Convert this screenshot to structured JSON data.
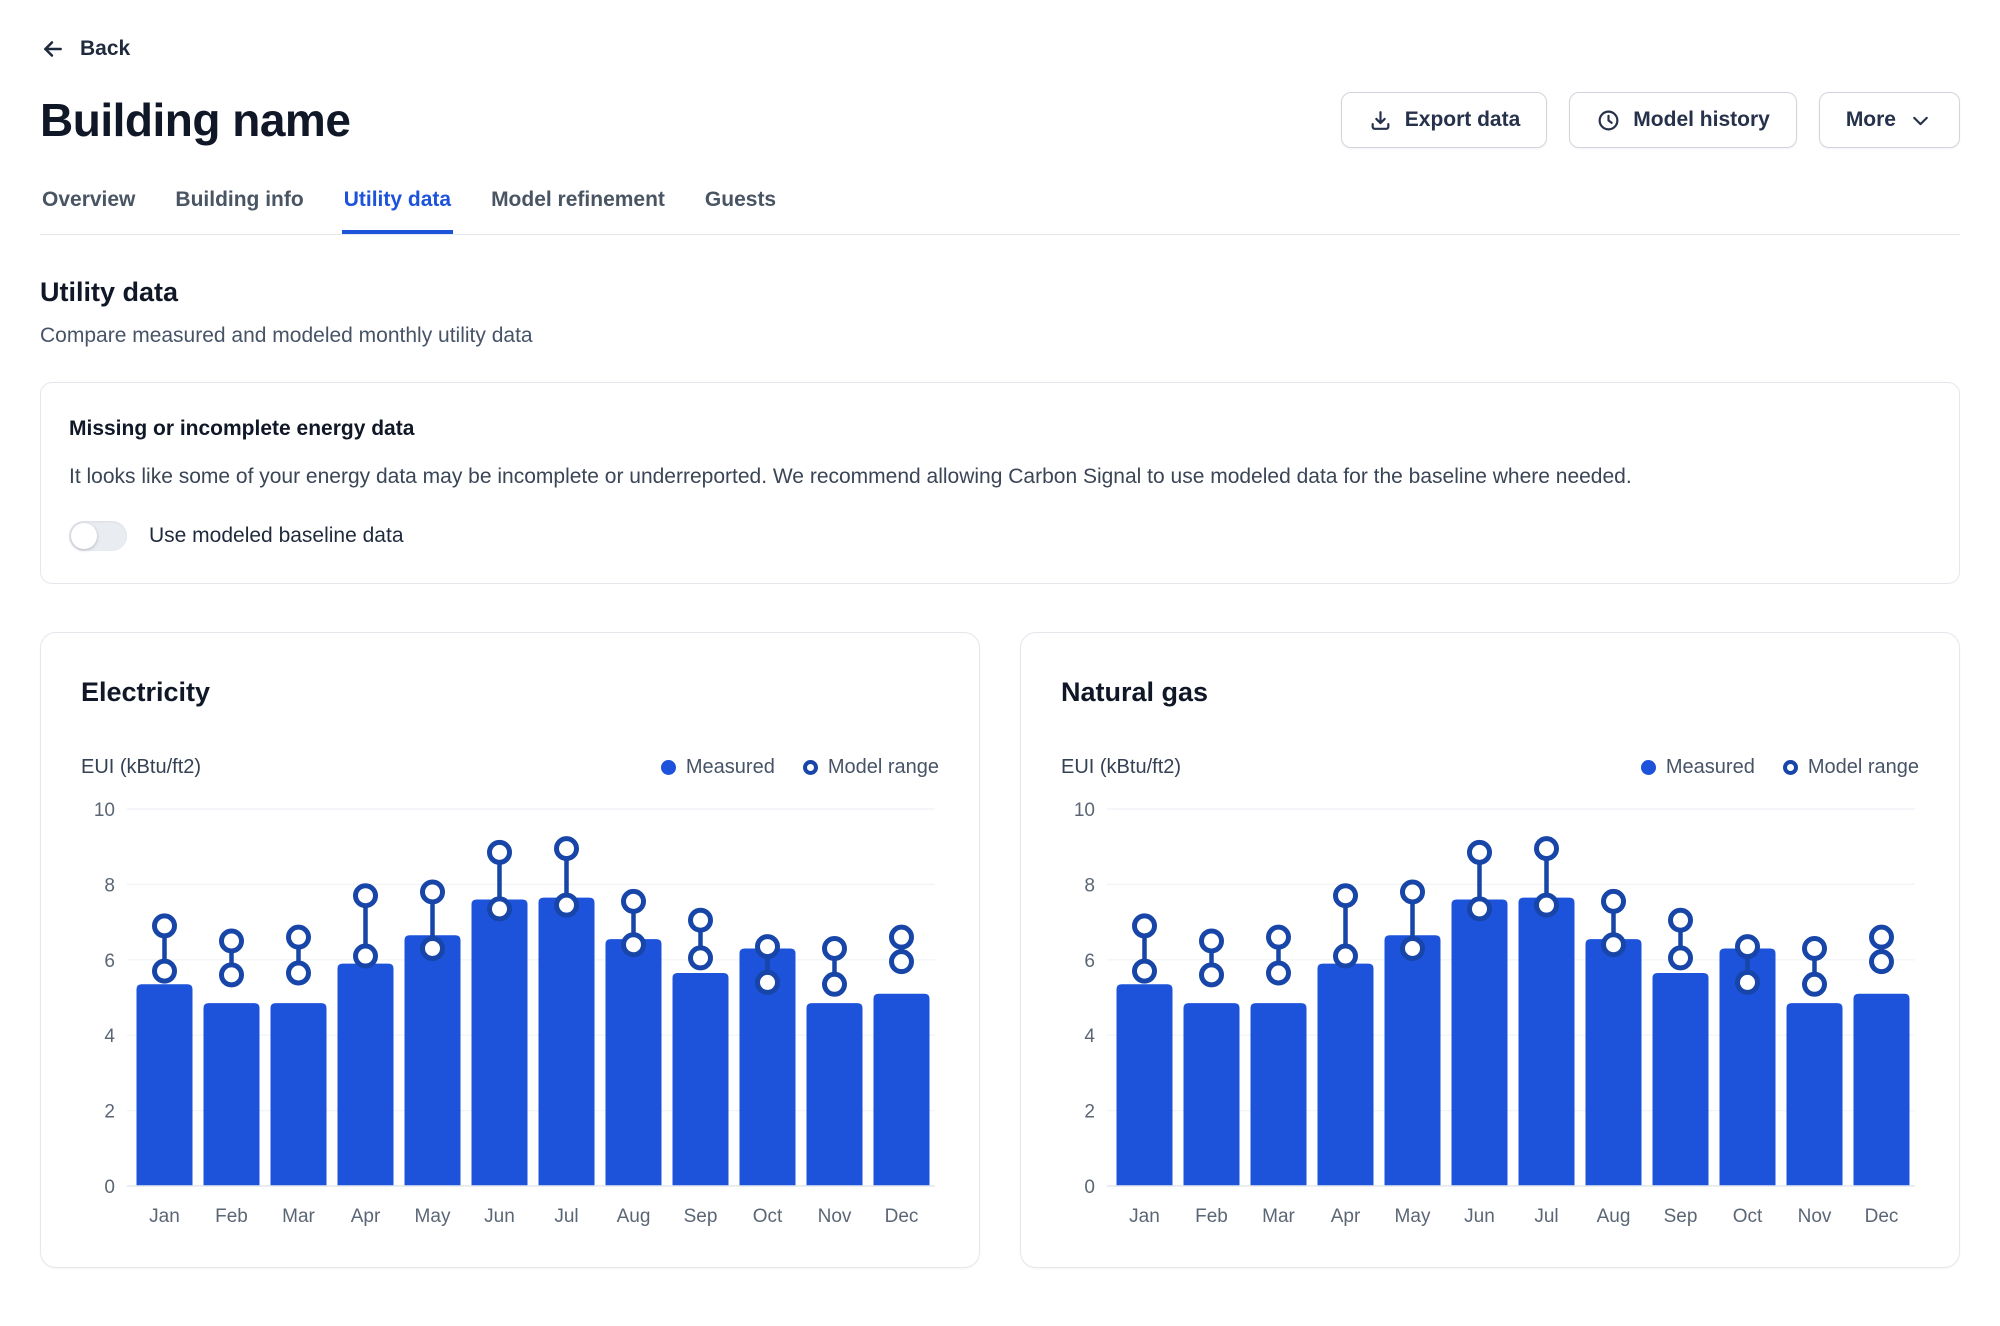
{
  "page": {
    "back_label": "Back",
    "title": "Building name"
  },
  "actions": {
    "export_label": "Export data",
    "model_history_label": "Model history",
    "more_label": "More"
  },
  "tabs": [
    {
      "label": "Overview",
      "active": false
    },
    {
      "label": "Building info",
      "active": false
    },
    {
      "label": "Utility data",
      "active": true
    },
    {
      "label": "Model refinement",
      "active": false
    },
    {
      "label": "Guests",
      "active": false
    }
  ],
  "section": {
    "heading": "Utility data",
    "subheading": "Compare measured and modeled monthly utility data"
  },
  "alert": {
    "title": "Missing or incomplete energy data",
    "body": "It looks like some of your energy data may be incomplete or underreported. We recommend allowing Carbon Signal to use modeled data for the baseline where needed.",
    "toggle_label": "Use modeled baseline data",
    "toggle_on": false
  },
  "colors": {
    "accent": "#1d52db",
    "model_range": "#1745a8",
    "grid": "#f2f4f7",
    "axis_line": "#e4e7ec",
    "tick_text": "#5b6675"
  },
  "chart_data": [
    {
      "type": "bar",
      "title": "Electricity",
      "ylabel": "EUI (kBtu/ft2)",
      "ylim": [
        0,
        10
      ],
      "yticks": [
        0,
        2,
        4,
        6,
        8,
        10
      ],
      "grid": true,
      "legend_position": "top-right",
      "legend": [
        {
          "label": "Measured",
          "style": "filled-dot"
        },
        {
          "label": "Model range",
          "style": "open-dot"
        }
      ],
      "categories": [
        "Jan",
        "Feb",
        "Mar",
        "Apr",
        "May",
        "Jun",
        "Jul",
        "Aug",
        "Sep",
        "Oct",
        "Nov",
        "Dec"
      ],
      "series": [
        {
          "name": "Measured",
          "type": "bar",
          "values": [
            5.35,
            4.85,
            4.85,
            5.9,
            6.65,
            7.6,
            7.65,
            6.55,
            5.65,
            6.3,
            4.85,
            5.1
          ]
        },
        {
          "name": "Model range",
          "type": "range",
          "low": [
            5.7,
            5.6,
            5.65,
            6.1,
            6.3,
            7.35,
            7.45,
            6.4,
            6.05,
            5.4,
            5.35,
            5.95
          ],
          "high": [
            6.9,
            6.5,
            6.6,
            7.7,
            7.8,
            8.85,
            8.95,
            7.55,
            7.05,
            6.35,
            6.3,
            6.6
          ]
        }
      ]
    },
    {
      "type": "bar",
      "title": "Natural gas",
      "ylabel": "EUI (kBtu/ft2)",
      "ylim": [
        0,
        10
      ],
      "yticks": [
        0,
        2,
        4,
        6,
        8,
        10
      ],
      "grid": true,
      "legend_position": "top-right",
      "legend": [
        {
          "label": "Measured",
          "style": "filled-dot"
        },
        {
          "label": "Model range",
          "style": "open-dot"
        }
      ],
      "categories": [
        "Jan",
        "Feb",
        "Mar",
        "Apr",
        "May",
        "Jun",
        "Jul",
        "Aug",
        "Sep",
        "Oct",
        "Nov",
        "Dec"
      ],
      "series": [
        {
          "name": "Measured",
          "type": "bar",
          "values": [
            5.35,
            4.85,
            4.85,
            5.9,
            6.65,
            7.6,
            7.65,
            6.55,
            5.65,
            6.3,
            4.85,
            5.1
          ]
        },
        {
          "name": "Model range",
          "type": "range",
          "low": [
            5.7,
            5.6,
            5.65,
            6.1,
            6.3,
            7.35,
            7.45,
            6.4,
            6.05,
            5.4,
            5.35,
            5.95
          ],
          "high": [
            6.9,
            6.5,
            6.6,
            7.7,
            7.8,
            8.85,
            8.95,
            7.55,
            7.05,
            6.35,
            6.3,
            6.6
          ]
        }
      ]
    }
  ]
}
